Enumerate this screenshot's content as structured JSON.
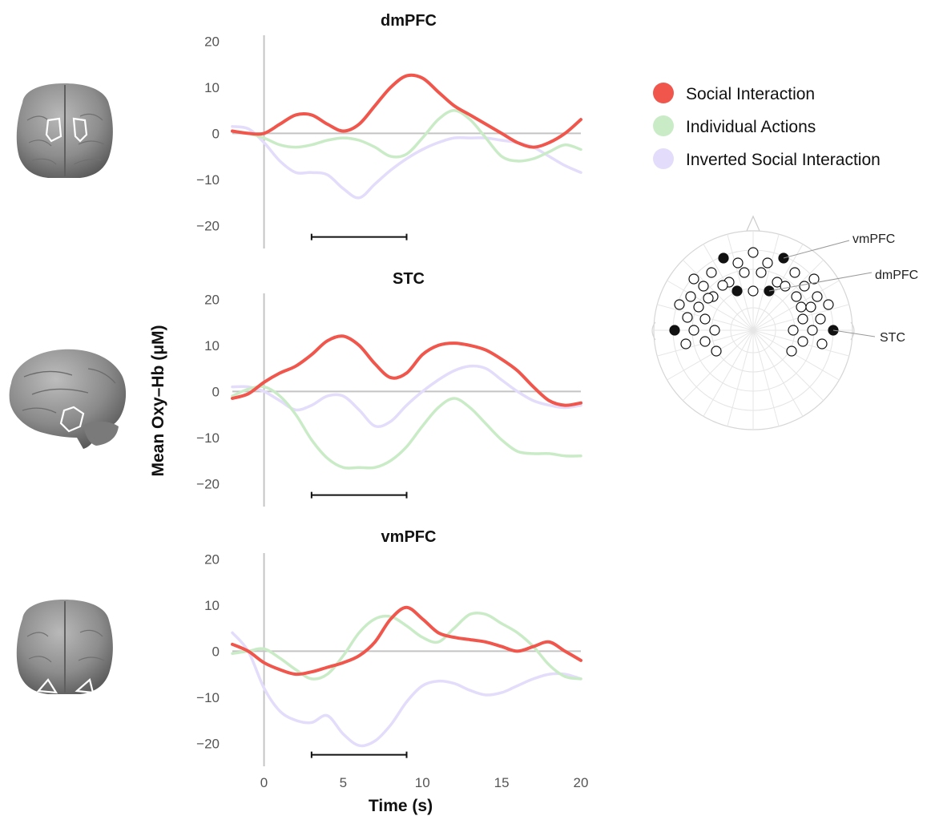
{
  "x_axis_title": "Time (s)",
  "y_axis_title": "Mean Oxy–Hb (μM)",
  "legend": [
    {
      "label": "Social Interaction",
      "color": "#f0564b"
    },
    {
      "label": "Individual Actions",
      "color": "#c9ecc7"
    },
    {
      "label": "Inverted Social Interaction",
      "color": "#e3dcfb"
    }
  ],
  "brain_icons": [
    "brain-front-view",
    "brain-side-view",
    "brain-front-view-lower"
  ],
  "electrode_map": {
    "labels": [
      "vmPFC",
      "dmPFC",
      "STC"
    ]
  },
  "chart_data": [
    {
      "type": "line",
      "title": "dmPFC",
      "xlim": [
        -2,
        20
      ],
      "ylim": [
        -25,
        22
      ],
      "xticks": [
        0,
        5,
        10,
        15,
        20
      ],
      "yticks": [
        20,
        10,
        0,
        -10,
        -20
      ],
      "ytick_labels": [
        "20",
        "10",
        "0",
        "−10",
        "−20"
      ],
      "significance_bar": [
        3,
        9
      ],
      "series": [
        {
          "name": "Inverted Social Interaction",
          "color": "#e3dcfb",
          "x": [
            -2,
            -1,
            0,
            1,
            2,
            3,
            4,
            5,
            6,
            7,
            8,
            9,
            10,
            11,
            12,
            13,
            14,
            15,
            16,
            17,
            18,
            19,
            20
          ],
          "y": [
            1.5,
            1,
            -2,
            -6,
            -8.5,
            -8.5,
            -9,
            -12,
            -14,
            -11,
            -8,
            -5.5,
            -3.5,
            -2,
            -1,
            -1,
            -1,
            -1.5,
            -2,
            -3,
            -5,
            -7,
            -8.5
          ]
        },
        {
          "name": "Individual Actions",
          "color": "#c9ecc7",
          "x": [
            -2,
            -1,
            0,
            1,
            2,
            3,
            4,
            5,
            6,
            7,
            8,
            9,
            10,
            11,
            12,
            13,
            14,
            15,
            16,
            17,
            18,
            19,
            20
          ],
          "y": [
            0.5,
            0,
            -1,
            -2.5,
            -3,
            -2.5,
            -1.5,
            -1,
            -1.5,
            -3,
            -5,
            -4.5,
            -1,
            3,
            5,
            3,
            -1,
            -5,
            -6,
            -5.5,
            -4,
            -2.5,
            -3.5
          ]
        },
        {
          "name": "Social Interaction",
          "color": "#f0564b",
          "x": [
            -2,
            -1,
            0,
            1,
            2,
            3,
            4,
            5,
            6,
            7,
            8,
            9,
            10,
            11,
            12,
            13,
            14,
            15,
            16,
            17,
            18,
            19,
            20
          ],
          "y": [
            0.5,
            0,
            0,
            2,
            4,
            4,
            2,
            0.5,
            2,
            6,
            10,
            12.5,
            12,
            9,
            6,
            4,
            2,
            0,
            -2,
            -3,
            -2,
            0,
            3
          ]
        }
      ]
    },
    {
      "type": "line",
      "title": "STC",
      "xlim": [
        -2,
        20
      ],
      "ylim": [
        -25,
        22
      ],
      "xticks": [
        0,
        5,
        10,
        15,
        20
      ],
      "yticks": [
        20,
        10,
        0,
        -10,
        -20
      ],
      "ytick_labels": [
        "20",
        "10",
        "0",
        "−10",
        "−20"
      ],
      "significance_bar": [
        3,
        9
      ],
      "series": [
        {
          "name": "Inverted Social Interaction",
          "color": "#e3dcfb",
          "x": [
            -2,
            -1,
            0,
            1,
            2,
            3,
            4,
            5,
            6,
            7,
            8,
            9,
            10,
            11,
            12,
            13,
            14,
            15,
            16,
            17,
            18,
            19,
            20
          ],
          "y": [
            1,
            1,
            0,
            -2,
            -4,
            -3,
            -1,
            -1,
            -4,
            -7.5,
            -6.5,
            -3,
            0,
            2.5,
            4.5,
            5.5,
            5,
            2.5,
            0,
            -2,
            -3,
            -3.5,
            -3
          ]
        },
        {
          "name": "Individual Actions",
          "color": "#c9ecc7",
          "x": [
            -2,
            -1,
            0,
            1,
            2,
            3,
            4,
            5,
            6,
            7,
            8,
            9,
            10,
            11,
            12,
            13,
            14,
            15,
            16,
            17,
            18,
            19,
            20
          ],
          "y": [
            -1,
            0.5,
            1,
            -1,
            -5,
            -10.5,
            -14.5,
            -16.5,
            -16.5,
            -16.5,
            -15,
            -12,
            -7.5,
            -3.5,
            -1.5,
            -3.5,
            -7,
            -10.5,
            -13,
            -13.5,
            -13.5,
            -14,
            -14
          ]
        },
        {
          "name": "Social Interaction",
          "color": "#f0564b",
          "x": [
            -2,
            -1,
            0,
            1,
            2,
            3,
            4,
            5,
            6,
            7,
            8,
            9,
            10,
            11,
            12,
            13,
            14,
            15,
            16,
            17,
            18,
            19,
            20
          ],
          "y": [
            -1.5,
            -0.5,
            2,
            4,
            5.5,
            8,
            11,
            12,
            10,
            6,
            3,
            4,
            8,
            10,
            10.5,
            10,
            9,
            7,
            4.5,
            1,
            -2,
            -3,
            -2.5
          ]
        }
      ]
    },
    {
      "type": "line",
      "title": "vmPFC",
      "xlim": [
        -2,
        20
      ],
      "ylim": [
        -25,
        22
      ],
      "xticks": [
        0,
        5,
        10,
        15,
        20
      ],
      "xtick_labels": [
        "0",
        "5",
        "10",
        "15",
        "20"
      ],
      "yticks": [
        20,
        10,
        0,
        -10,
        -20
      ],
      "ytick_labels": [
        "20",
        "10",
        "0",
        "−10",
        "−20"
      ],
      "significance_bar": [
        3,
        9
      ],
      "series": [
        {
          "name": "Inverted Social Interaction",
          "color": "#e3dcfb",
          "x": [
            -2,
            -1,
            0,
            1,
            2,
            3,
            4,
            5,
            6,
            7,
            8,
            9,
            10,
            11,
            12,
            13,
            14,
            15,
            16,
            17,
            18,
            19,
            20
          ],
          "y": [
            4,
            0,
            -8,
            -13,
            -15,
            -15.5,
            -14,
            -18,
            -20.5,
            -19.5,
            -16,
            -11,
            -7.5,
            -6.5,
            -7,
            -8.5,
            -9.5,
            -9,
            -7.5,
            -6,
            -5,
            -5,
            -6
          ]
        },
        {
          "name": "Individual Actions",
          "color": "#c9ecc7",
          "x": [
            -2,
            -1,
            0,
            1,
            2,
            3,
            4,
            5,
            6,
            7,
            8,
            9,
            10,
            11,
            12,
            13,
            14,
            15,
            16,
            17,
            18,
            19,
            20
          ],
          "y": [
            -0.5,
            0,
            0.5,
            -1.5,
            -4,
            -6,
            -5,
            -1,
            4,
            7,
            7.5,
            5.5,
            3,
            2,
            5,
            8,
            8,
            6,
            4,
            1,
            -3,
            -5.5,
            -6
          ]
        },
        {
          "name": "Social Interaction",
          "color": "#f0564b",
          "x": [
            -2,
            -1,
            0,
            1,
            2,
            3,
            4,
            5,
            6,
            7,
            8,
            9,
            10,
            11,
            12,
            13,
            14,
            15,
            16,
            17,
            18,
            19,
            20
          ],
          "y": [
            1.5,
            0,
            -2.5,
            -4,
            -5,
            -4.5,
            -3.5,
            -2.5,
            -1,
            2,
            7,
            9.5,
            7,
            4,
            3,
            2.5,
            2,
            1,
            0,
            1,
            2,
            0,
            -2
          ]
        }
      ]
    }
  ]
}
